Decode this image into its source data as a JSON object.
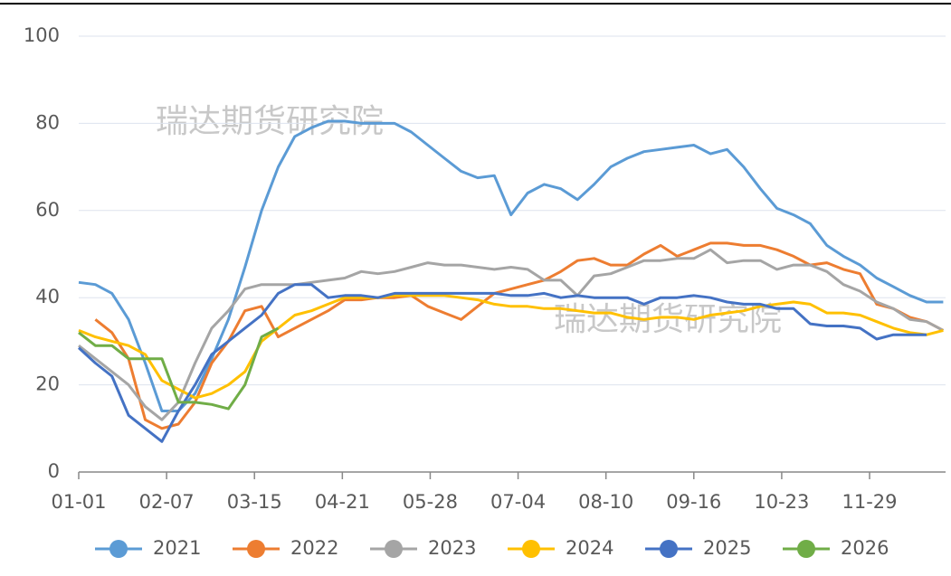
{
  "chart_data": {
    "type": "line",
    "annotations": [
      "瑞达期货研究院",
      "瑞达期货研究院"
    ],
    "x": [
      0,
      7,
      14,
      21,
      28,
      35,
      42,
      49,
      56,
      63,
      70,
      77,
      84,
      91,
      98,
      105,
      112,
      119,
      126,
      133,
      140,
      147,
      154,
      161,
      168,
      175,
      182,
      189,
      196,
      203,
      210,
      217,
      224,
      231,
      238,
      245,
      252,
      259,
      266,
      273,
      280,
      287,
      294,
      301,
      308,
      315,
      322,
      329,
      336,
      343,
      350,
      357,
      364
    ],
    "xlim": [
      0,
      365
    ],
    "xticks": [
      {
        "value": 0,
        "label": "01-01"
      },
      {
        "value": 37,
        "label": "02-07"
      },
      {
        "value": 74,
        "label": "03-15"
      },
      {
        "value": 111,
        "label": "04-21"
      },
      {
        "value": 148,
        "label": "05-28"
      },
      {
        "value": 185,
        "label": "07-04"
      },
      {
        "value": 222,
        "label": "08-10"
      },
      {
        "value": 259,
        "label": "09-16"
      },
      {
        "value": 296,
        "label": "10-23"
      },
      {
        "value": 333,
        "label": "11-29"
      }
    ],
    "ylim": [
      0,
      100
    ],
    "yticks": [
      0,
      20,
      40,
      60,
      80,
      100
    ],
    "grid": true,
    "legend": "bottom",
    "series": [
      {
        "name": "2021",
        "color": "#5b9bd5",
        "values": [
          43.5,
          43,
          41,
          35,
          25,
          14,
          14,
          18,
          26,
          35,
          47,
          60,
          70,
          77,
          79,
          80.5,
          80.5,
          80,
          80,
          80,
          78,
          75,
          72,
          69,
          67.5,
          68,
          59,
          64,
          66,
          65,
          62.5,
          66,
          70,
          72,
          73.5,
          74,
          74.5,
          75,
          73,
          74,
          70,
          65,
          60.5,
          59,
          57,
          52,
          49.5,
          47.5,
          44.5,
          42.5,
          40.5,
          39,
          39
        ]
      },
      {
        "name": "2022",
        "color": "#ed7d31",
        "values": [
          null,
          35,
          32,
          26,
          12,
          10,
          11,
          16,
          25,
          30,
          37,
          38,
          31,
          33,
          35,
          37,
          39.5,
          39.5,
          40,
          40,
          40.5,
          38,
          36.5,
          35,
          38,
          41,
          42,
          43,
          44,
          46,
          48.5,
          49,
          47.5,
          47.5,
          50,
          52,
          49.5,
          51,
          52.5,
          52.5,
          52,
          52,
          51,
          49.5,
          47.5,
          48,
          46.5,
          45.5,
          38.5,
          37.5,
          35.5,
          34.5,
          32.5
        ]
      },
      {
        "name": "2023",
        "color": "#a5a5a5",
        "values": [
          29,
          26,
          23,
          20,
          15,
          12,
          16,
          25,
          33,
          37,
          42,
          43,
          43,
          43,
          43.5,
          44,
          44.5,
          46,
          45.5,
          46,
          47,
          48,
          47.5,
          47.5,
          47,
          46.5,
          47,
          46.5,
          44,
          44,
          40.5,
          45,
          45.5,
          47,
          48.5,
          48.5,
          49,
          49,
          51,
          48,
          48.5,
          48.5,
          46.5,
          47.5,
          47.5,
          46,
          43,
          41.5,
          39,
          37.5,
          35,
          34.5,
          32.5
        ]
      },
      {
        "name": "2024",
        "color": "#ffc000",
        "values": [
          32.5,
          31,
          30,
          29,
          27,
          21,
          19,
          17,
          18,
          20,
          23,
          30,
          33,
          36,
          37,
          38.5,
          40,
          40,
          40,
          40.5,
          40.5,
          40.5,
          40.5,
          40,
          39.5,
          38.5,
          38,
          38,
          37.5,
          37.5,
          37,
          36.5,
          36.5,
          35.5,
          35,
          35.5,
          35.5,
          35,
          36,
          36.5,
          37,
          38,
          38.5,
          39,
          38.5,
          36.5,
          36.5,
          36,
          34.5,
          33,
          32,
          31.5,
          32.5
        ]
      },
      {
        "name": "2025",
        "color": "#4472c4",
        "values": [
          28.5,
          25,
          22,
          13,
          10,
          7,
          14,
          20,
          27,
          30,
          33,
          36,
          41,
          43,
          43,
          40,
          40.5,
          40.5,
          40,
          41,
          41,
          41,
          41,
          41,
          41,
          41,
          40.5,
          40.5,
          41,
          40,
          40.5,
          40,
          40,
          40,
          38.5,
          40,
          40,
          40.5,
          40,
          39,
          38.5,
          38.5,
          37.5,
          37.5,
          34,
          33.5,
          33.5,
          33,
          30.5,
          31.5,
          31.5,
          31.5,
          null
        ]
      },
      {
        "name": "2026",
        "color": "#70ad47",
        "values": [
          32,
          29,
          29,
          26,
          26,
          26,
          16,
          16,
          15.5,
          14.5,
          20,
          31,
          33,
          null,
          null,
          null,
          null,
          null,
          null,
          null,
          null,
          null,
          null,
          null,
          null,
          null,
          null,
          null,
          null,
          null,
          null,
          null,
          null,
          null,
          null,
          null,
          null,
          null,
          null,
          null,
          null,
          null,
          null,
          null,
          null,
          null,
          null,
          null,
          null,
          null,
          null,
          null,
          null
        ]
      }
    ]
  }
}
